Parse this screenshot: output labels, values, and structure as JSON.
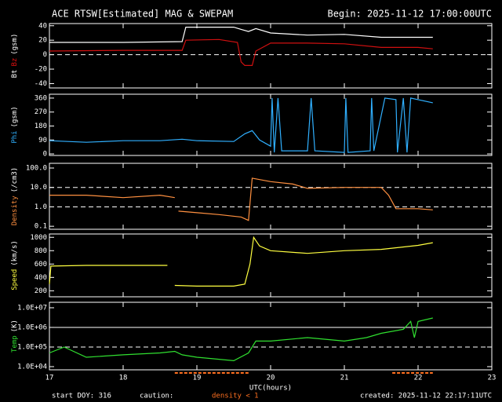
{
  "chart_data": [
    {
      "type": "line",
      "title": "ACE RTSW[Estimated] MAG & SWEPAM",
      "subtitle": "Begin: 2025-11-12 17:00:00UTC",
      "ylabel_parts": [
        {
          "text": "Bt",
          "color": "#ffffff"
        },
        {
          "text": "Bz",
          "color": "#e01010"
        },
        {
          "text": "(gsm)",
          "color": "#ffffff"
        }
      ],
      "xlim": [
        17,
        23
      ],
      "ylim": [
        -46,
        43
      ],
      "yticks": [
        -40,
        -20,
        0,
        20,
        40
      ],
      "hlines": [
        {
          "value": 0,
          "style": "dashed"
        }
      ],
      "series": [
        {
          "name": "Bt",
          "color": "#ffffff",
          "x": [
            17.0,
            18.0,
            18.8,
            18.85,
            19.5,
            19.6,
            19.7,
            19.8,
            20.0,
            20.5,
            21.0,
            21.5,
            22.0,
            22.2
          ],
          "values": [
            17,
            17,
            18,
            38,
            38,
            35,
            32,
            36,
            30,
            27,
            28,
            24,
            24,
            24
          ]
        },
        {
          "name": "Bz",
          "color": "#d01010",
          "x": [
            17.0,
            18.0,
            18.8,
            18.85,
            19.3,
            19.55,
            19.6,
            19.65,
            19.75,
            19.8,
            20.0,
            20.5,
            21.0,
            21.5,
            22.0,
            22.2
          ],
          "values": [
            5,
            6,
            6,
            20,
            21,
            17,
            -10,
            -15,
            -15,
            5,
            16,
            16,
            15,
            10,
            10,
            8
          ]
        }
      ]
    },
    {
      "type": "line",
      "ylabel_parts": [
        {
          "text": "Phi",
          "color": "#30b0ff"
        },
        {
          "text": "(gsm)",
          "color": "#ffffff"
        }
      ],
      "xlim": [
        17,
        23
      ],
      "ylim": [
        -10,
        385
      ],
      "yticks": [
        0,
        90,
        180,
        270,
        360
      ],
      "series": [
        {
          "name": "Phi",
          "color": "#30b0ff",
          "x": [
            17.0,
            17.5,
            18.0,
            18.5,
            18.8,
            19.0,
            19.5,
            19.65,
            19.75,
            19.85,
            20.0,
            20.02,
            20.05,
            20.1,
            20.15,
            20.5,
            20.55,
            20.6,
            21.0,
            21.02,
            21.05,
            21.35,
            21.37,
            21.4,
            21.55,
            21.7,
            21.72,
            21.8,
            21.85,
            21.9,
            22.0,
            22.2
          ],
          "values": [
            85,
            75,
            85,
            85,
            95,
            85,
            80,
            130,
            150,
            90,
            50,
            360,
            10,
            360,
            20,
            20,
            360,
            20,
            10,
            360,
            10,
            20,
            360,
            20,
            360,
            350,
            10,
            360,
            10,
            360,
            350,
            330
          ]
        }
      ]
    },
    {
      "type": "line",
      "log": true,
      "ylabel_parts": [
        {
          "text": "Density",
          "color": "#ff9040"
        },
        {
          "text": "(/cm3)",
          "color": "#ffffff"
        }
      ],
      "xlim": [
        17,
        23
      ],
      "ylim": [
        0.07,
        175
      ],
      "yticks": [
        {
          "value": 0.1,
          "label": "0.1"
        },
        {
          "value": 1,
          "label": "1.0"
        },
        {
          "value": 10,
          "label": "10.0"
        },
        {
          "value": 100,
          "label": "100.0"
        }
      ],
      "hlines": [
        {
          "value": 1,
          "style": "dashed"
        },
        {
          "value": 10,
          "style": "dashed"
        }
      ],
      "series": [
        {
          "name": "Density",
          "color": "#ff9040",
          "x": [
            17.0,
            17.5,
            18.0,
            18.5,
            18.7,
            18.72,
            18.75,
            19.0,
            19.3,
            19.6,
            19.7,
            19.75,
            20.0,
            20.3,
            20.5,
            21.0,
            21.5,
            21.6,
            21.7,
            22.0,
            22.2
          ],
          "values": [
            4,
            4,
            3,
            4,
            3,
            null,
            0.6,
            0.5,
            0.4,
            0.3,
            0.2,
            30,
            20,
            15,
            9,
            10,
            10,
            4,
            0.8,
            0.8,
            0.7
          ]
        }
      ]
    },
    {
      "type": "line",
      "ylabel_parts": [
        {
          "text": "Speed",
          "color": "#ffff40"
        },
        {
          "text": "(km/s)",
          "color": "#ffffff"
        }
      ],
      "xlim": [
        17,
        23
      ],
      "ylim": [
        110,
        1050
      ],
      "yticks": [
        200,
        400,
        600,
        800,
        1000
      ],
      "series": [
        {
          "name": "Speed",
          "color": "#ffff40",
          "x": [
            17.0,
            17.02,
            17.5,
            18.0,
            18.6,
            18.65,
            18.7,
            19.0,
            19.5,
            19.65,
            19.72,
            19.77,
            19.85,
            20.0,
            20.5,
            21.0,
            21.5,
            22.0,
            22.2
          ],
          "values": [
            300,
            570,
            580,
            580,
            580,
            null,
            280,
            270,
            270,
            300,
            600,
            1000,
            870,
            800,
            760,
            800,
            820,
            880,
            920
          ]
        }
      ]
    },
    {
      "type": "line",
      "log": true,
      "ylabel_parts": [
        {
          "text": "Temp",
          "color": "#30e030"
        },
        {
          "text": "(K)",
          "color": "#ffffff"
        }
      ],
      "xlabel": "UTC(hours)",
      "xlim": [
        17,
        23
      ],
      "xticks": [
        17,
        18,
        19,
        20,
        21,
        22,
        23
      ],
      "ylim": [
        6900,
        19000000
      ],
      "yticks": [
        {
          "value": 10000,
          "label": "1.0E+04"
        },
        {
          "value": 100000,
          "label": "1.0E+05"
        },
        {
          "value": 1000000,
          "label": "1.0E+06"
        },
        {
          "value": 10000000,
          "label": "1.0E+07"
        }
      ],
      "hlines": [
        {
          "value": 100000,
          "style": "dashed"
        },
        {
          "value": 1000000,
          "style": "solid"
        }
      ],
      "series": [
        {
          "name": "Temp",
          "color": "#30e030",
          "x": [
            17.0,
            17.2,
            17.5,
            18.0,
            18.5,
            18.7,
            18.8,
            19.0,
            19.5,
            19.7,
            19.8,
            20.0,
            20.5,
            21.0,
            21.3,
            21.5,
            21.8,
            21.9,
            21.95,
            22.0,
            22.2
          ],
          "values": [
            50000,
            100000,
            30000,
            40000,
            50000,
            60000,
            40000,
            30000,
            20000,
            50000,
            200000,
            200000,
            300000,
            200000,
            300000,
            500000,
            800000,
            2000000,
            300000,
            2000000,
            3000000
          ]
        }
      ]
    }
  ],
  "footer": {
    "start_doy": "start DOY: 316",
    "caution": "caution:",
    "density_note": "density < 1",
    "created": "created: 2025-11-12 22:17:11UTC",
    "caution_ranges": [
      [
        18.7,
        19.7
      ],
      [
        21.65,
        22.2
      ]
    ],
    "caution_color": "#ff7020"
  }
}
